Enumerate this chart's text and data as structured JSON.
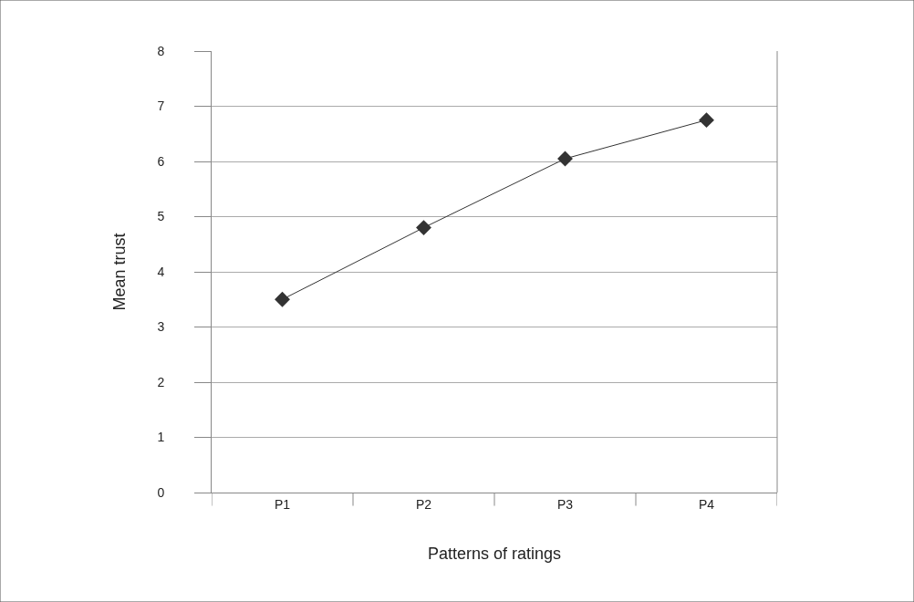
{
  "chart_data": {
    "type": "line",
    "xlabel": "Patterns of ratings",
    "ylabel": "Mean trust",
    "categories": [
      "P1",
      "P2",
      "P3",
      "P4"
    ],
    "series": [
      {
        "color": "#333333",
        "values": [
          3.5,
          4.8,
          6.05,
          6.75
        ]
      }
    ],
    "ylim": [
      0,
      8
    ],
    "yticks": [
      0,
      1,
      2,
      3,
      4,
      5,
      6,
      7,
      8
    ],
    "grid": "y",
    "legend": false,
    "marker": "diamond",
    "line_style": "solid"
  }
}
